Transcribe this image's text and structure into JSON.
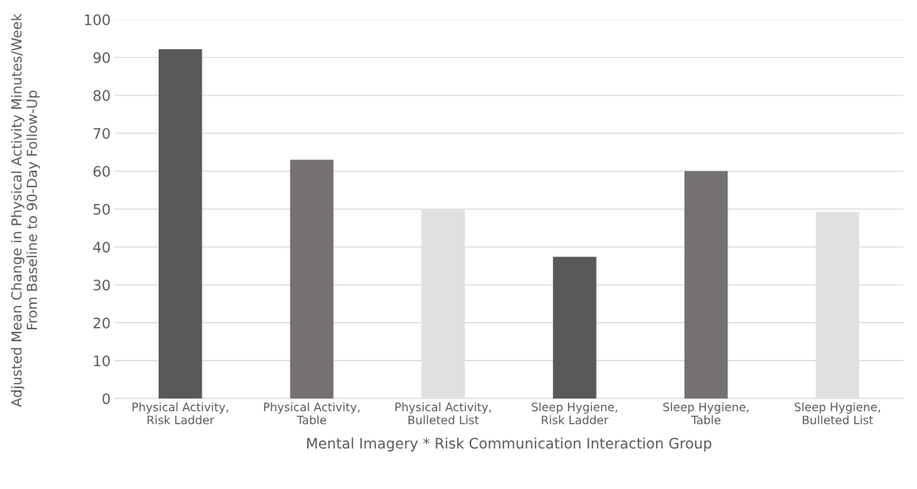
{
  "chart_data": {
    "type": "bar",
    "xlabel": "Mental Imagery * Risk Communication Interaction Group",
    "ylabel": "Adjusted Mean Change in Physical Activity Minutes/Week From Baseline to 90-Day Follow-Up",
    "categories": [
      "Physical Activity, Risk Ladder",
      "Physical Activity, Table",
      "Physical Activity, Bulleted List",
      "Sleep Hygiene, Risk Ladder",
      "Sleep Hygiene, Table",
      "Sleep Hygiene, Bulleted List"
    ],
    "values": [
      92.2,
      63.0,
      50.0,
      37.4,
      60.0,
      49.3
    ],
    "colors": [
      "#595959",
      "#767171",
      "#e0e0e0",
      "#595959",
      "#767171",
      "#e0e0e0"
    ],
    "ylim": [
      0,
      100
    ],
    "yticks": [
      0,
      10,
      20,
      30,
      40,
      50,
      60,
      70,
      80,
      90,
      100
    ],
    "grid": "y"
  }
}
